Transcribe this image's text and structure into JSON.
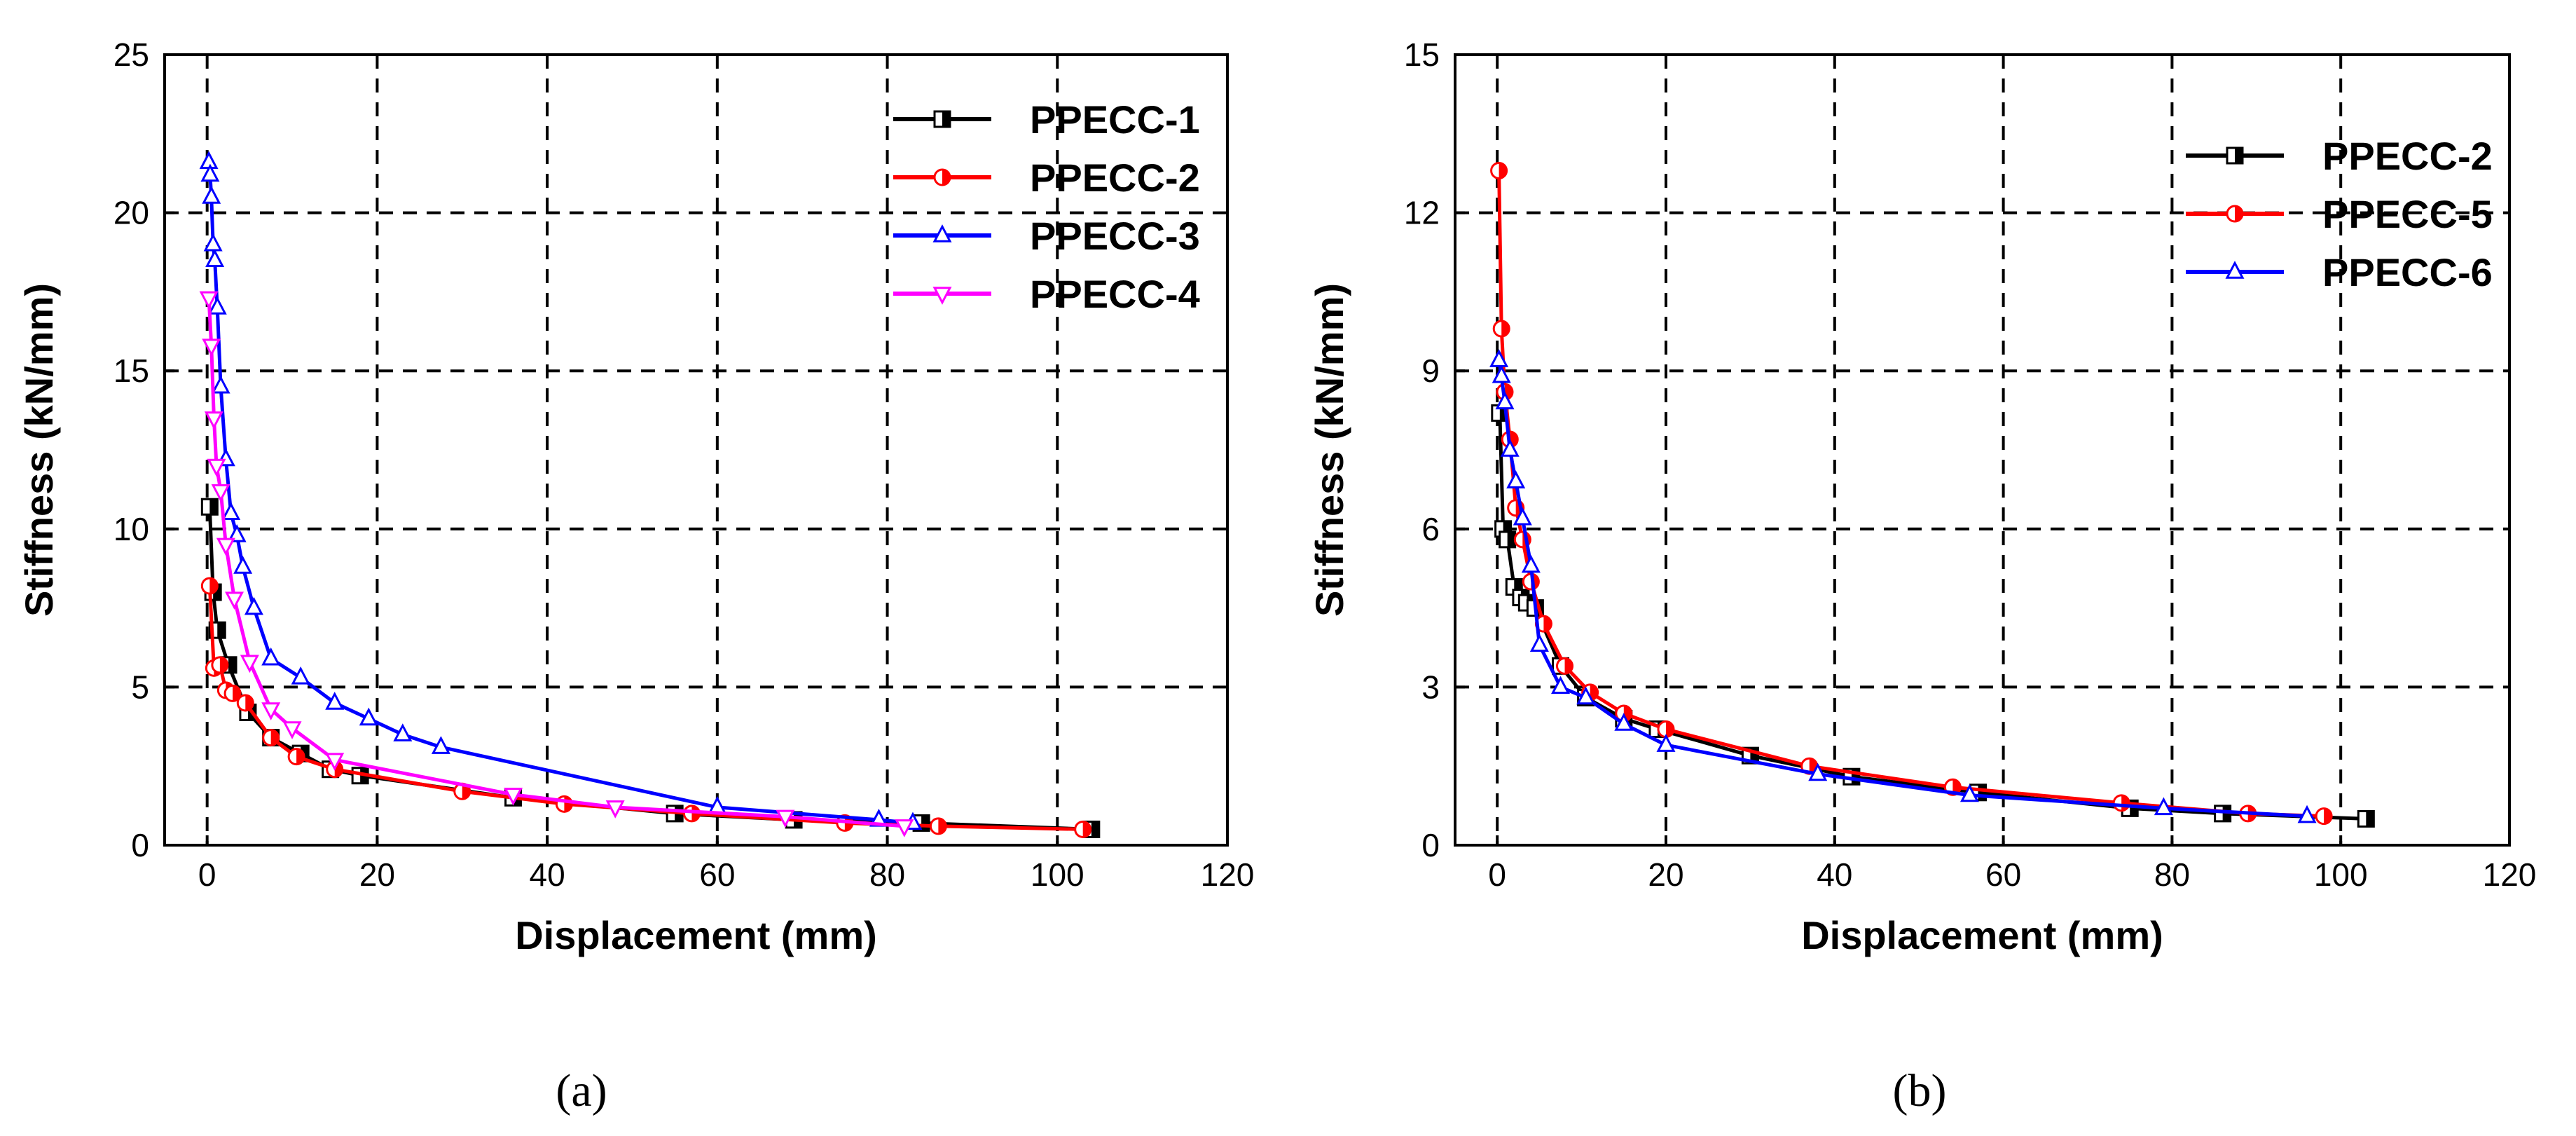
{
  "chart_data": [
    {
      "panel_label": "(a)",
      "type": "line",
      "xlabel": "Displacement (mm)",
      "ylabel": "Stiffness (kN/mm)",
      "xlim": [
        -5,
        120
      ],
      "ylim": [
        0,
        25
      ],
      "xticks": [
        "0",
        "20",
        "40",
        "60",
        "80",
        "100",
        "120"
      ],
      "yticks": [
        "0",
        "5",
        "10",
        "15",
        "20",
        "25"
      ],
      "grid": true,
      "legend_position": "top-right",
      "series": [
        {
          "name": "PPECC-1",
          "color": "#000000",
          "marker": "square",
          "x": [
            0.3,
            0.7,
            1.2,
            2.5,
            4.8,
            7.5,
            11,
            14.5,
            18,
            36,
            55,
            69,
            84,
            104
          ],
          "y": [
            10.7,
            8.0,
            6.8,
            5.7,
            4.2,
            3.4,
            2.9,
            2.4,
            2.2,
            1.5,
            1.0,
            0.8,
            0.7,
            0.5
          ]
        },
        {
          "name": "PPECC-2",
          "color": "#ff0000",
          "marker": "circle",
          "x": [
            0.3,
            0.8,
            1.5,
            2.2,
            3.0,
            4.5,
            7.5,
            10.5,
            15,
            30,
            42,
            57,
            75,
            86,
            103
          ],
          "y": [
            8.2,
            5.6,
            5.7,
            4.9,
            4.8,
            4.5,
            3.4,
            2.8,
            2.4,
            1.7,
            1.3,
            1.0,
            0.7,
            0.6,
            0.5
          ]
        },
        {
          "name": "PPECC-3",
          "color": "#0000ff",
          "marker": "triangle-up",
          "x": [
            0.2,
            0.35,
            0.5,
            0.7,
            0.9,
            1.2,
            1.6,
            2.2,
            2.8,
            3.5,
            4.2,
            5.5,
            7.5,
            11,
            15,
            19,
            23,
            27.5,
            60,
            79,
            83
          ],
          "y": [
            21.6,
            21.2,
            20.5,
            19.0,
            18.5,
            17.0,
            14.5,
            12.2,
            10.5,
            9.8,
            8.8,
            7.5,
            5.9,
            5.3,
            4.5,
            4.0,
            3.5,
            3.1,
            1.2,
            0.8,
            0.7
          ]
        },
        {
          "name": "PPECC-4",
          "color": "#ff00ff",
          "marker": "triangle-down",
          "x": [
            0.2,
            0.5,
            0.8,
            1.1,
            1.6,
            2.2,
            3.2,
            5,
            7.5,
            10,
            15,
            36,
            48,
            68,
            82
          ],
          "y": [
            17.3,
            15.8,
            13.5,
            12.0,
            11.2,
            9.5,
            7.8,
            5.8,
            4.3,
            3.7,
            2.7,
            1.6,
            1.2,
            0.9,
            0.6
          ]
        }
      ]
    },
    {
      "panel_label": "(b)",
      "type": "line",
      "xlabel": "Displacement (mm)",
      "ylabel": "Stiffness (kN/mm)",
      "xlim": [
        -5,
        120
      ],
      "ylim": [
        0,
        15
      ],
      "xticks": [
        "0",
        "20",
        "40",
        "60",
        "80",
        "100",
        "120"
      ],
      "yticks": [
        "0",
        "3",
        "6",
        "9",
        "12",
        "15"
      ],
      "grid": true,
      "legend_position": "top-right",
      "series": [
        {
          "name": "PPECC-2",
          "color": "#000000",
          "marker": "square",
          "x": [
            0.3,
            0.7,
            1.2,
            2.0,
            2.8,
            3.5,
            4.5,
            7.5,
            10.5,
            15,
            19,
            30,
            42,
            57,
            75,
            86,
            103
          ],
          "y": [
            8.2,
            6.0,
            5.8,
            4.9,
            4.7,
            4.6,
            4.5,
            3.4,
            2.8,
            2.4,
            2.2,
            1.7,
            1.3,
            1.0,
            0.7,
            0.6,
            0.5
          ]
        },
        {
          "name": "PPECC-5",
          "color": "#ff0000",
          "marker": "circle",
          "x": [
            0.2,
            0.5,
            0.9,
            1.5,
            2.2,
            3.0,
            4.0,
            5.5,
            8,
            11,
            15,
            20,
            37,
            54,
            74,
            89,
            98
          ],
          "y": [
            12.8,
            9.8,
            8.6,
            7.7,
            6.4,
            5.8,
            5.0,
            4.2,
            3.4,
            2.9,
            2.5,
            2.2,
            1.5,
            1.1,
            0.8,
            0.6,
            0.55
          ]
        },
        {
          "name": "PPECC-6",
          "color": "#0000ff",
          "marker": "triangle-up",
          "x": [
            0.2,
            0.5,
            0.9,
            1.5,
            2.2,
            3.0,
            4.0,
            5.0,
            7.5,
            10.5,
            15,
            20,
            38,
            56,
            79,
            96
          ],
          "y": [
            9.2,
            8.9,
            8.4,
            7.5,
            6.9,
            6.2,
            5.3,
            3.8,
            3.0,
            2.8,
            2.3,
            1.9,
            1.35,
            0.95,
            0.7,
            0.55
          ]
        }
      ]
    }
  ]
}
